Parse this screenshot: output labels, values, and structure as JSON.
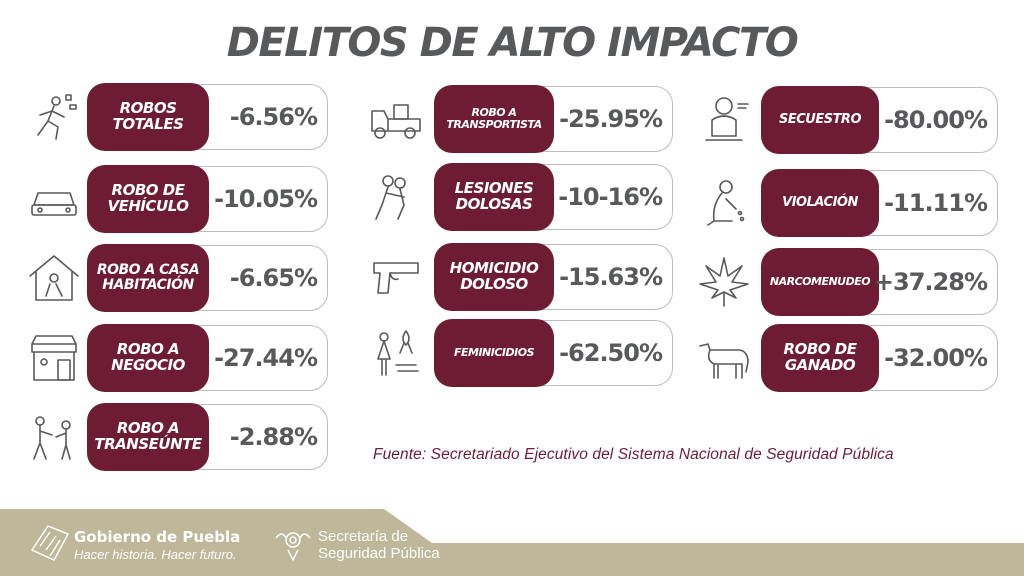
{
  "title": "DELITOS DE ALTO IMPACTO",
  "colors": {
    "label_bg": "#6d1c33",
    "value_text": "#58595b",
    "footer_band": "#bfb79a"
  },
  "crimes": [
    {
      "label": "ROBOS TOTALES",
      "value": "-6.56%",
      "icon": "thief-running-icon"
    },
    {
      "label": "ROBO DE VEHÍCULO",
      "value": "-10.05%",
      "icon": "car-icon"
    },
    {
      "label": "ROBO A CASA HABITACIÓN",
      "value": "-6.65%",
      "icon": "house-burglar-icon"
    },
    {
      "label": "ROBO A NEGOCIO",
      "value": "-27.44%",
      "icon": "store-icon"
    },
    {
      "label": "ROBO A TRANSEÚNTE",
      "value": "-2.88%",
      "icon": "pedestrian-robbery-icon"
    },
    {
      "label": "ROBO A TRANSPORTISTA",
      "value": "-25.95%",
      "icon": "truck-icon"
    },
    {
      "label": "LESIONES DOLOSAS",
      "value": "-10-16%",
      "icon": "assault-icon"
    },
    {
      "label": "HOMICIDIO DOLOSO",
      "value": "-15.63%",
      "icon": "gun-icon"
    },
    {
      "label": "FEMINICIDIOS",
      "value": "-62.50%",
      "icon": "woman-ribbon-icon"
    },
    {
      "label": "SECUESTRO",
      "value": "-80.00%",
      "icon": "kidnapped-person-icon"
    },
    {
      "label": "VIOLACIÓN",
      "value": "-11.11%",
      "icon": "crying-woman-icon"
    },
    {
      "label": "NARCOMENUDEO",
      "value": "+37.28%",
      "icon": "cannabis-leaf-icon"
    },
    {
      "label": "ROBO DE GANADO",
      "value": "-32.00%",
      "icon": "cow-icon"
    }
  ],
  "source": "Fuente: Secretariado Ejecutivo del Sistema Nacional de Seguridad Pública",
  "footer": {
    "gov_name": "Gobierno de Puebla",
    "gov_slogan": "Hacer historia. Hacer futuro.",
    "secretariat_line1": "Secretaría de",
    "secretariat_line2": "Seguridad Pública"
  }
}
